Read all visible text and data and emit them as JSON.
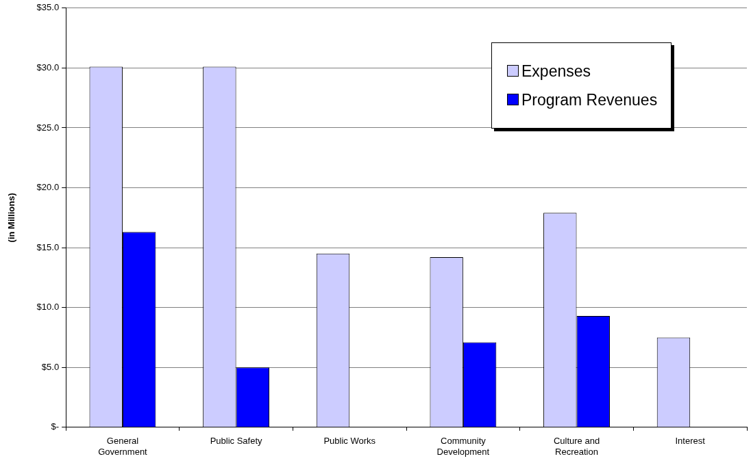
{
  "chart_data": {
    "type": "bar",
    "ylabel": "(in Millions)",
    "categories": [
      "General Government",
      "Public Safety",
      "Public Works",
      "Community Development",
      "Culture and Recreation",
      "Interest"
    ],
    "series": [
      {
        "name": "Expenses",
        "color": "#ccccff",
        "values": [
          30.1,
          30.1,
          14.5,
          14.2,
          17.9,
          7.5
        ]
      },
      {
        "name": "Program Revenues",
        "color": "#0000ff",
        "values": [
          16.3,
          5.0,
          0,
          7.1,
          9.3,
          0
        ]
      }
    ],
    "ylim": [
      0,
      35
    ],
    "yticks": [
      {
        "value": 0,
        "label": "$-"
      },
      {
        "value": 5,
        "label": "$5.0"
      },
      {
        "value": 10,
        "label": "$10.0"
      },
      {
        "value": 15,
        "label": "$15.0"
      },
      {
        "value": 20,
        "label": "$20.0"
      },
      {
        "value": 25,
        "label": "$25.0"
      },
      {
        "value": 30,
        "label": "$30.0"
      },
      {
        "value": 35,
        "label": "$35.0"
      }
    ],
    "grid": "y",
    "legend": "top right"
  }
}
